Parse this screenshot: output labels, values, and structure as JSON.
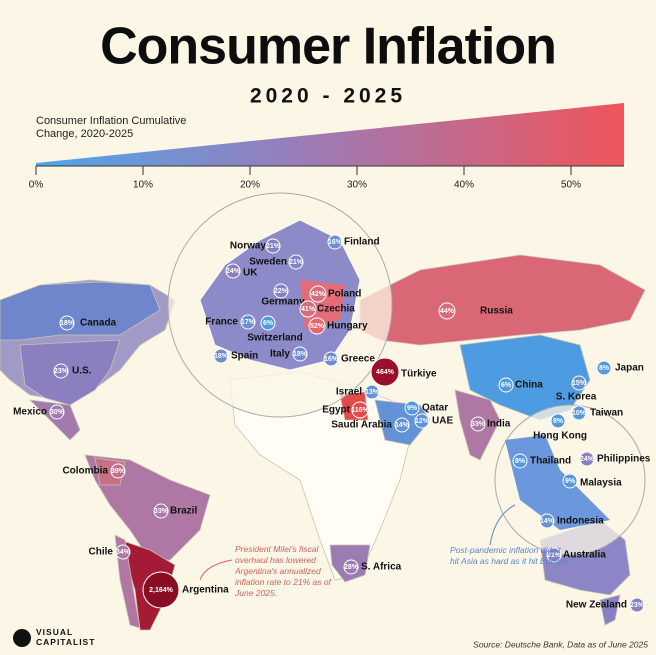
{
  "title": "Consumer Inflation",
  "subtitle": "2020 - 2025",
  "legend": {
    "title": "Consumer Inflation Cumulative Change, 2020-2025",
    "ticks": [
      "0%",
      "10%",
      "20%",
      "30%",
      "40%",
      "50%"
    ]
  },
  "countries": [
    {
      "name": "Finland",
      "value": "16%",
      "color": "#6b8fd6"
    },
    {
      "name": "Norway",
      "value": "21%",
      "color": "#7f83c6"
    },
    {
      "name": "Sweden",
      "value": "21%",
      "color": "#7f83c6"
    },
    {
      "name": "UK",
      "value": "24%",
      "color": "#8a7fbf"
    },
    {
      "name": "Germany",
      "value": "22%",
      "color": "#8380c3"
    },
    {
      "name": "Poland",
      "value": "42%",
      "color": "#d46c7c"
    },
    {
      "name": "Czechia",
      "value": "41%",
      "color": "#d06e7e"
    },
    {
      "name": "France",
      "value": "17%",
      "color": "#6c8cd3"
    },
    {
      "name": "Switzerland",
      "value": "6%",
      "color": "#4d9be0"
    },
    {
      "name": "Hungary",
      "value": "52%",
      "color": "#e8636b"
    },
    {
      "name": "Spain",
      "value": "18%",
      "color": "#718ad0"
    },
    {
      "name": "Italy",
      "value": "18%",
      "color": "#718ad0"
    },
    {
      "name": "Greece",
      "value": "16%",
      "color": "#6b8fd6"
    },
    {
      "name": "Türkiye",
      "value": "464%",
      "color": "#9b0f2a"
    },
    {
      "name": "Israel",
      "value": "13%",
      "color": "#6192da"
    },
    {
      "name": "Egypt",
      "value": "116%",
      "color": "#e34a4a"
    },
    {
      "name": "Saudi Arabia",
      "value": "14%",
      "color": "#6492d9"
    },
    {
      "name": "Qatar",
      "value": "9%",
      "color": "#5597de"
    },
    {
      "name": "UAE",
      "value": "12%",
      "color": "#5e93db"
    },
    {
      "name": "Russia",
      "value": "44%",
      "color": "#d96a78"
    },
    {
      "name": "Canada",
      "value": "18%",
      "color": "#718ad0"
    },
    {
      "name": "U.S.",
      "value": "23%",
      "color": "#8780c1"
    },
    {
      "name": "Mexico",
      "value": "30%",
      "color": "#a27aad"
    },
    {
      "name": "Colombia",
      "value": "39%",
      "color": "#c57085"
    },
    {
      "name": "Brazil",
      "value": "33%",
      "color": "#ae77a4"
    },
    {
      "name": "Chile",
      "value": "34%",
      "color": "#b176a1"
    },
    {
      "name": "Argentina",
      "value": "2,164%",
      "color": "#8a0e22"
    },
    {
      "name": "S. Africa",
      "value": "28%",
      "color": "#9a7cb3"
    },
    {
      "name": "India",
      "value": "33%",
      "color": "#ae77a4"
    },
    {
      "name": "China",
      "value": "6%",
      "color": "#4d9be0"
    },
    {
      "name": "Japan",
      "value": "8%",
      "color": "#5298df"
    },
    {
      "name": "S. Korea",
      "value": "15%",
      "color": "#6890d7"
    },
    {
      "name": "Taiwan",
      "value": "10%",
      "color": "#5896dd"
    },
    {
      "name": "Hong Kong",
      "value": "8%",
      "color": "#5298df"
    },
    {
      "name": "Thailand",
      "value": "8%",
      "color": "#5298df"
    },
    {
      "name": "Philippines",
      "value": "24%",
      "color": "#8a7fbf"
    },
    {
      "name": "Malaysia",
      "value": "9%",
      "color": "#5597de"
    },
    {
      "name": "Indonesia",
      "value": "14%",
      "color": "#6492d9"
    },
    {
      "name": "Australia",
      "value": "21%",
      "color": "#7f83c6"
    },
    {
      "name": "New Zealand",
      "value": "23%",
      "color": "#8780c1"
    }
  ],
  "annotations": [
    "President Milei's fiscal overhaul has lowered Argentina's annualized inflation rate to 21% as of June 2025.",
    "Post-pandemic inflation didn't hit Asia as hard as it hit Europe."
  ],
  "source": "Source: Deutsche Bank, Data as of June 2025",
  "logo": "VISUAL CAPITALIST"
}
